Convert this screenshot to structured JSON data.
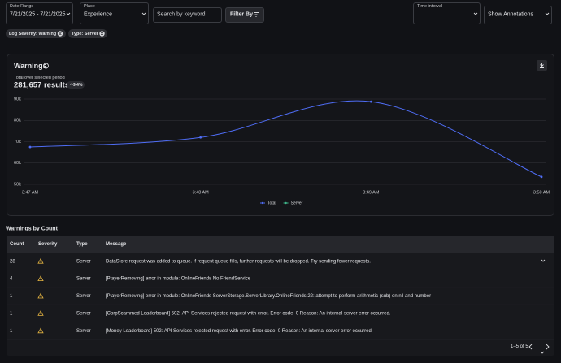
{
  "filters": {
    "date_range": {
      "label": "Date Range",
      "value": "7/21/2025 - 7/21/2025"
    },
    "place": {
      "label": "Place",
      "value": "Experience"
    },
    "search": {
      "placeholder": "Search by keyword"
    },
    "filter_by": "Filter By",
    "time_interval": {
      "label": "Time interval"
    },
    "annotations": "Show Annotations"
  },
  "chips": [
    "Log Severity: Warning",
    "Type: Server"
  ],
  "card": {
    "title": "Warnings",
    "subtitle": "Total over selected period",
    "total": "281,657 results",
    "change": "9.4%"
  },
  "chart_data": {
    "type": "line",
    "categories": [
      "3:47 AM",
      "3:48 AM",
      "3:49 AM",
      "3:50 AM"
    ],
    "series": [
      {
        "name": "Total",
        "color": "#4f6df5",
        "values": [
          67500,
          72000,
          88800,
          53500
        ]
      },
      {
        "name": "Server",
        "color": "#3fb68b",
        "values": [
          null,
          null,
          null,
          null
        ]
      }
    ],
    "ylim": [
      50000,
      90000
    ],
    "yticks": [
      {
        "value": 50000,
        "label": "50k"
      },
      {
        "value": 60000,
        "label": "60k"
      },
      {
        "value": 70000,
        "label": "70k"
      },
      {
        "value": 80000,
        "label": "80k"
      },
      {
        "value": 90000,
        "label": "90k"
      }
    ],
    "grid": true
  },
  "table": {
    "title": "Warnings by Count",
    "columns": [
      "Count",
      "Severity",
      "Type",
      "Message"
    ],
    "rows": [
      {
        "count": 28,
        "type": "Server",
        "message": "DataStore request was added to queue. If request queue fills, further requests will be dropped. Try sending fewer requests."
      },
      {
        "count": 4,
        "type": "Server",
        "message": "[PlayerRemoving] error in module: OnlineFriends No FriendService"
      },
      {
        "count": 1,
        "type": "Server",
        "message": "[PlayerRemoving] error in module: OnlineFriends ServerStorage.ServerLibrary.OnlineFriends:22: attempt to perform arithmetic (sub) on nil and number"
      },
      {
        "count": 1,
        "type": "Server",
        "message": "[CorpScammed Leaderboard] 502: API Services rejected request with error. Error code: 0 Reason: An internal server error occurred."
      },
      {
        "count": 1,
        "type": "Server",
        "message": "[Money Leaderboard] 502: API Services rejected request with error. Error code: 0 Reason: An internal server error occurred."
      }
    ],
    "pagination": "1–5 of 5"
  }
}
